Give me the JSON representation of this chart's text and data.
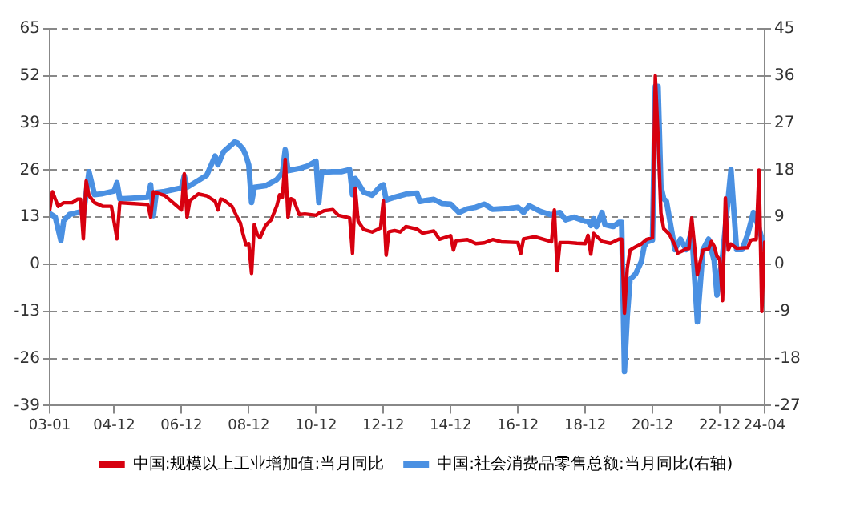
{
  "chart_data": {
    "type": "line",
    "xlim": [
      "2003-01",
      "2024-04"
    ],
    "xticks": [
      {
        "value": "2003-01",
        "label": "03-01"
      },
      {
        "value": "2004-12",
        "label": "04-12"
      },
      {
        "value": "2006-12",
        "label": "06-12"
      },
      {
        "value": "2008-12",
        "label": "08-12"
      },
      {
        "value": "2010-12",
        "label": "10-12"
      },
      {
        "value": "2012-12",
        "label": "12-12"
      },
      {
        "value": "2014-12",
        "label": "14-12"
      },
      {
        "value": "2016-12",
        "label": "16-12"
      },
      {
        "value": "2018-12",
        "label": "18-12"
      },
      {
        "value": "2020-12",
        "label": "20-12"
      },
      {
        "value": "2022-12",
        "label": "22-12"
      },
      {
        "value": "2024-04",
        "label": "24-04"
      }
    ],
    "ylim": [
      -39,
      65
    ],
    "yticks": [
      -39,
      -26,
      -13,
      0,
      13,
      26,
      39,
      52,
      65
    ],
    "y2lim": [
      -27,
      45
    ],
    "y2ticks": [
      -27,
      -18,
      -9,
      0,
      9,
      18,
      27,
      36,
      45
    ],
    "grid": "y",
    "legend": "bottom",
    "marker": "none",
    "line_style": "solid",
    "series": [
      {
        "name": "中国:规模以上工业增加值:当月同比",
        "color": "#d7000f",
        "x": [
          "2003-01",
          "2003-02",
          "2003-04",
          "2003-06",
          "2003-09",
          "2003-11",
          "2003-12",
          "2004-01",
          "2004-02",
          "2004-03",
          "2004-05",
          "2004-08",
          "2004-11",
          "2005-01",
          "2005-02",
          "2005-06",
          "2005-12",
          "2006-01",
          "2006-02",
          "2006-06",
          "2006-12",
          "2007-01",
          "2007-02",
          "2007-03",
          "2007-06",
          "2007-09",
          "2007-12",
          "2008-01",
          "2008-02",
          "2008-03",
          "2008-06",
          "2008-08",
          "2008-09",
          "2008-10",
          "2008-11",
          "2008-12",
          "2009-01",
          "2009-02",
          "2009-03",
          "2009-04",
          "2009-06",
          "2009-08",
          "2009-10",
          "2009-11",
          "2009-12",
          "2010-01",
          "2010-02",
          "2010-03",
          "2010-04",
          "2010-06",
          "2010-08",
          "2010-12",
          "2011-01",
          "2011-03",
          "2011-06",
          "2011-08",
          "2011-12",
          "2012-01",
          "2012-02",
          "2012-03",
          "2012-05",
          "2012-08",
          "2012-11",
          "2012-12",
          "2013-01",
          "2013-02",
          "2013-04",
          "2013-06",
          "2013-08",
          "2013-12",
          "2014-02",
          "2014-06",
          "2014-08",
          "2014-12",
          "2015-01",
          "2015-02",
          "2015-06",
          "2015-09",
          "2015-12",
          "2016-03",
          "2016-06",
          "2016-12",
          "2017-01",
          "2017-02",
          "2017-06",
          "2017-12",
          "2018-01",
          "2018-02",
          "2018-03",
          "2018-06",
          "2018-09",
          "2018-12",
          "2019-01",
          "2019-02",
          "2019-03",
          "2019-06",
          "2019-09",
          "2019-12",
          "2020-01",
          "2020-02",
          "2020-03",
          "2020-04",
          "2020-05",
          "2020-06",
          "2020-08",
          "2020-10",
          "2020-12",
          "2021-01",
          "2021-02",
          "2021-03",
          "2021-04",
          "2021-06",
          "2021-08",
          "2021-09",
          "2021-11",
          "2021-12",
          "2022-01",
          "2022-02",
          "2022-03",
          "2022-04",
          "2022-05",
          "2022-06",
          "2022-08",
          "2022-09",
          "2022-10",
          "2022-11",
          "2022-12",
          "2023-01",
          "2023-02",
          "2023-03",
          "2023-04",
          "2023-06",
          "2023-08",
          "2023-10",
          "2023-11",
          "2023-12",
          "2024-01",
          "2024-02",
          "2024-03",
          "2024-04"
        ],
        "values": [
          15,
          20,
          16,
          17,
          17,
          18,
          18,
          7,
          23,
          19,
          17,
          16,
          16,
          7,
          17,
          16.8,
          16.5,
          13,
          20,
          19,
          15,
          25,
          13,
          17.6,
          19.4,
          18.9,
          17.4,
          15,
          18,
          17.8,
          16,
          12.8,
          11.4,
          8.2,
          5.4,
          5.7,
          -2.5,
          11,
          8.3,
          7.3,
          10.7,
          12.3,
          16.1,
          19.2,
          18.5,
          29,
          13,
          18.1,
          17.8,
          13.7,
          13.9,
          13.5,
          14.1,
          14.8,
          15.1,
          13.5,
          12.8,
          3,
          21,
          11.9,
          9.6,
          8.9,
          10,
          17.5,
          2.5,
          9,
          9.3,
          8.9,
          10.4,
          9.7,
          8.6,
          9.2,
          6.9,
          7.9,
          3.9,
          6.5,
          6.8,
          5.7,
          5.9,
          6.8,
          6.2,
          6,
          2.9,
          7,
          7.6,
          6.2,
          15,
          -1.8,
          6,
          6,
          5.8,
          5.7,
          8,
          2.8,
          8.5,
          6.3,
          5.8,
          6.9,
          6.9,
          -13.5,
          -1.1,
          3.9,
          4.4,
          4.8,
          5.6,
          6.9,
          7.3,
          52,
          35,
          14.1,
          9.8,
          8.3,
          5.3,
          3.1,
          3.8,
          4.3,
          4.3,
          12.8,
          5,
          -2.9,
          0.7,
          3.9,
          4.2,
          6.3,
          5,
          2.2,
          1.3,
          -10,
          18.3,
          3.9,
          5.6,
          4.4,
          4.5,
          4.6,
          6.6,
          6.8,
          6.8,
          26,
          -13,
          6.1
        ]
      },
      {
        "name": "中国:社会消费品零售总额:当月同比(右轴)",
        "color": "#4a90e2",
        "axis": "y2",
        "x": [
          "2003-01",
          "2003-03",
          "2003-05",
          "2003-06",
          "2003-08",
          "2003-12",
          "2004-01",
          "2004-03",
          "2004-05",
          "2004-08",
          "2004-12",
          "2005-01",
          "2005-02",
          "2005-06",
          "2005-12",
          "2006-01",
          "2006-02",
          "2006-03",
          "2006-06",
          "2006-12",
          "2007-01",
          "2007-02",
          "2007-06",
          "2007-09",
          "2007-12",
          "2008-01",
          "2008-03",
          "2008-07",
          "2008-08",
          "2008-10",
          "2008-11",
          "2008-12",
          "2009-01",
          "2009-02",
          "2009-06",
          "2009-10",
          "2009-12",
          "2010-01",
          "2010-02",
          "2010-06",
          "2010-09",
          "2010-12",
          "2011-01",
          "2011-02",
          "2011-06",
          "2011-09",
          "2011-12",
          "2012-01",
          "2012-02",
          "2012-05",
          "2012-08",
          "2012-11",
          "2012-12",
          "2013-01",
          "2013-04",
          "2013-08",
          "2013-12",
          "2014-01",
          "2014-03",
          "2014-06",
          "2014-09",
          "2014-12",
          "2015-03",
          "2015-06",
          "2015-09",
          "2015-12",
          "2016-03",
          "2016-06",
          "2016-09",
          "2016-12",
          "2017-02",
          "2017-04",
          "2017-08",
          "2017-12",
          "2018-01",
          "2018-03",
          "2018-05",
          "2018-08",
          "2018-10",
          "2018-12",
          "2019-01",
          "2019-02",
          "2019-03",
          "2019-04",
          "2019-06",
          "2019-07",
          "2019-10",
          "2019-12",
          "2020-01",
          "2020-02",
          "2020-03",
          "2020-04",
          "2020-06",
          "2020-08",
          "2020-09",
          "2020-10",
          "2020-12",
          "2021-01",
          "2021-02",
          "2021-03",
          "2021-04",
          "2021-05",
          "2021-08",
          "2021-10",
          "2021-12",
          "2022-02",
          "2022-04",
          "2022-06",
          "2022-08",
          "2022-10",
          "2022-11",
          "2023-01",
          "2023-04",
          "2023-06",
          "2023-08",
          "2023-10",
          "2023-12",
          "2024-02",
          "2024-04"
        ],
        "values": [
          9.7,
          9,
          4.5,
          8.3,
          9.5,
          10,
          9.3,
          17.7,
          13.3,
          13.5,
          14,
          15.6,
          12.5,
          12.6,
          12.8,
          15.2,
          9.3,
          13.7,
          13.9,
          14.6,
          16.9,
          14.7,
          16,
          17,
          20.7,
          19,
          21.5,
          23.4,
          23.2,
          22,
          20.8,
          19,
          11.8,
          14.7,
          15,
          16.2,
          17.5,
          21.9,
          17.9,
          18.3,
          18.8,
          19.7,
          11.8,
          17.6,
          17.7,
          17.7,
          18.1,
          13.3,
          16.4,
          13.8,
          13.2,
          14.9,
          15.2,
          12.3,
          12.8,
          13.4,
          13.6,
          12,
          12.2,
          12.4,
          11.6,
          11.5,
          9.9,
          10.6,
          10.9,
          11.5,
          10.5,
          10.6,
          10.7,
          10.9,
          9.9,
          11.2,
          10.1,
          9.4,
          9.7,
          9.9,
          8.5,
          9,
          8.6,
          8.2,
          8.2,
          7.4,
          8.7,
          7.2,
          9.9,
          7.6,
          7.2,
          8,
          8,
          -20.5,
          -10,
          -2.9,
          -1.8,
          0.5,
          3.3,
          4.3,
          4.6,
          34,
          34,
          15,
          12.5,
          12,
          2.8,
          4.8,
          2.8,
          6.3,
          -11,
          2.8,
          4.8,
          0.7,
          -5.9,
          1.7,
          18.1,
          2.8,
          2.8,
          5.8,
          9.9,
          6.9,
          2.8
        ]
      }
    ]
  }
}
